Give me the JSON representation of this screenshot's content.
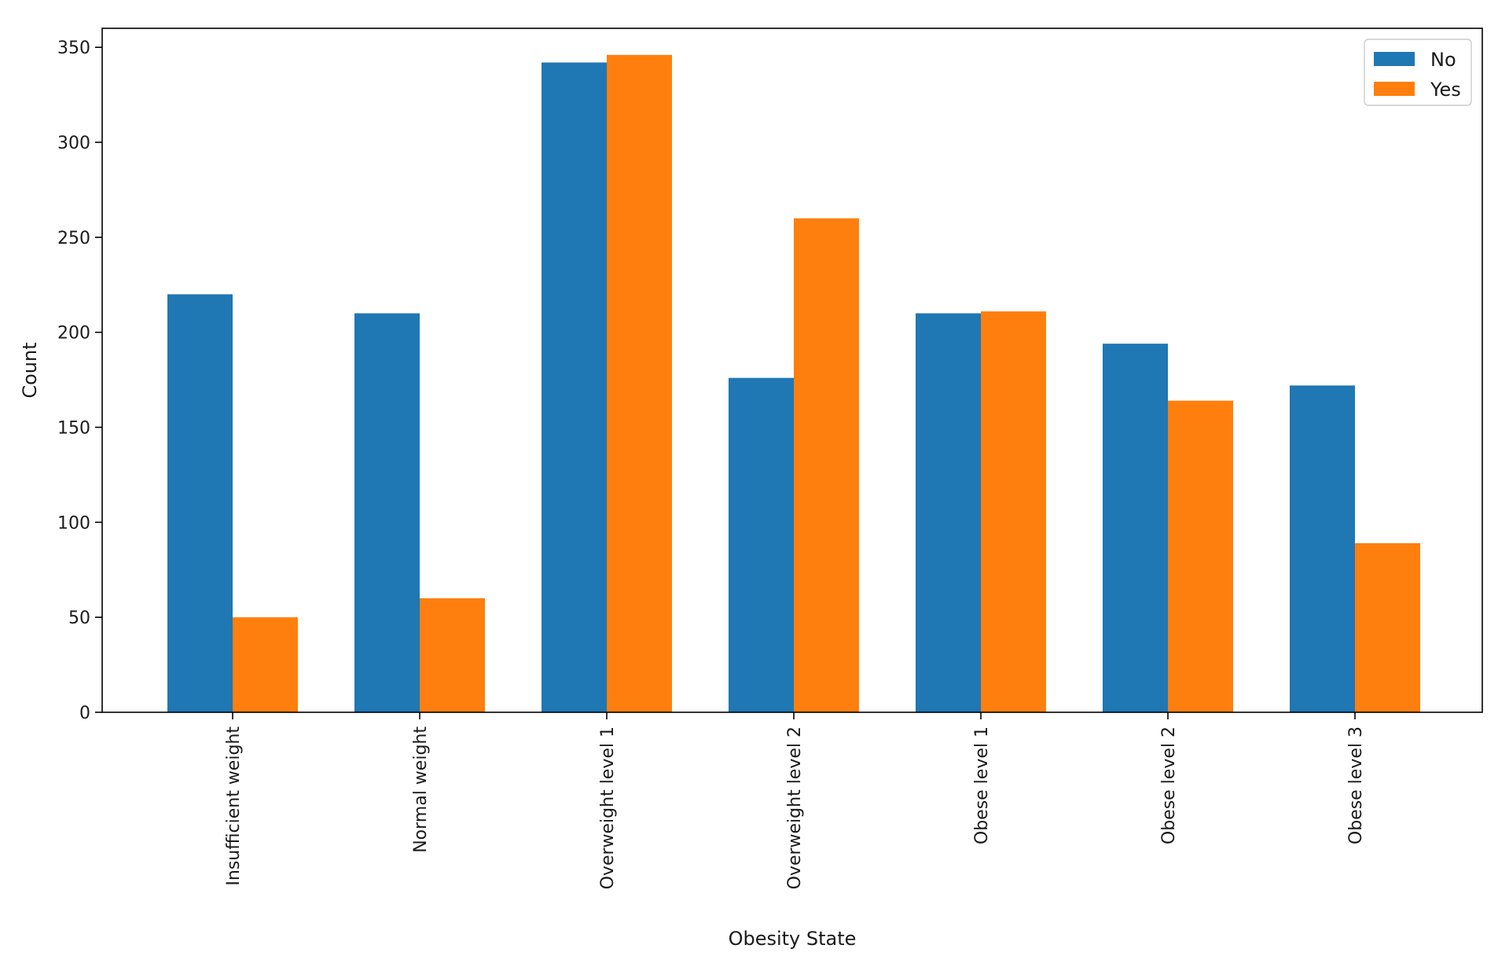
{
  "chart_data": {
    "type": "bar",
    "title": "",
    "xlabel": "Obesity State",
    "ylabel": "Count",
    "categories": [
      "Insufficient weight",
      "Normal weight",
      "Overweight level 1",
      "Overweight level 2",
      "Obese level 1",
      "Obese level 2",
      "Obese level 3"
    ],
    "series": [
      {
        "name": "No",
        "color": "#1f77b4",
        "values": [
          220,
          210,
          342,
          176,
          210,
          194,
          172
        ]
      },
      {
        "name": "Yes",
        "color": "#ff7f0e",
        "values": [
          50,
          60,
          346,
          260,
          211,
          164,
          89
        ]
      }
    ],
    "ylim": [
      0,
      360
    ],
    "yticks": [
      0,
      50,
      100,
      150,
      200,
      250,
      300,
      350
    ],
    "grid": false,
    "legend_position": "top-right"
  }
}
